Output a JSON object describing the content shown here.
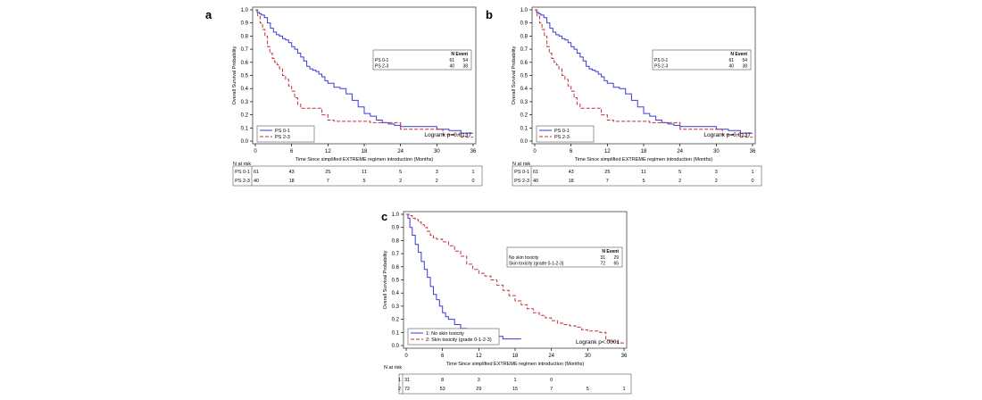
{
  "colors": {
    "group1": "#3a3ad6",
    "group2": "#c0303a",
    "axis": "#000000"
  },
  "chart_data": [
    {
      "type": "line",
      "panel_label": "a",
      "xlabel": "Time Since simplified EXTREME regimen introduction (Months)",
      "ylabel": "Overall Survival Probability",
      "xlim": [
        0,
        36
      ],
      "ylim": [
        0,
        1
      ],
      "xticks": [
        "0",
        "6",
        "12",
        "18",
        "24",
        "30",
        "36"
      ],
      "yticks": [
        "0.0",
        "0.1",
        "0.2",
        "0.3",
        "0.4",
        "0.5",
        "0.6",
        "0.7",
        "0.8",
        "0.9",
        "1.0"
      ],
      "series": [
        {
          "name": "PS 0-1",
          "style": "solid",
          "times": [
            0,
            0.3,
            0.7,
            1,
            1.5,
            2,
            2.5,
            3,
            3.5,
            4,
            4.5,
            5,
            5.5,
            6,
            6.5,
            7,
            7.5,
            8,
            8.5,
            9,
            9.5,
            10,
            10.5,
            11,
            11.5,
            12,
            13,
            14,
            15,
            16,
            17,
            18,
            19,
            20,
            21,
            22,
            23,
            24,
            26,
            28,
            30,
            32,
            33,
            34,
            36
          ],
          "surv": [
            1,
            0.98,
            0.97,
            0.96,
            0.94,
            0.9,
            0.86,
            0.83,
            0.81,
            0.8,
            0.78,
            0.77,
            0.75,
            0.72,
            0.7,
            0.67,
            0.64,
            0.61,
            0.57,
            0.55,
            0.54,
            0.53,
            0.51,
            0.49,
            0.46,
            0.44,
            0.41,
            0.4,
            0.36,
            0.31,
            0.26,
            0.21,
            0.19,
            0.16,
            0.14,
            0.13,
            0.12,
            0.11,
            0.11,
            0.11,
            0.09,
            0.08,
            0.08,
            0.06,
            0.06
          ]
        },
        {
          "name": "PS 2-3",
          "style": "dashed",
          "times": [
            0,
            0.4,
            0.8,
            1.2,
            1.6,
            2,
            2.4,
            2.8,
            3.2,
            3.6,
            4,
            4.5,
            5,
            5.5,
            6,
            6.5,
            7,
            7.5,
            8,
            10,
            11,
            12,
            13,
            18,
            19,
            22,
            24,
            30,
            31,
            33,
            34,
            36
          ],
          "surv": [
            1,
            0.95,
            0.9,
            0.85,
            0.8,
            0.72,
            0.67,
            0.63,
            0.6,
            0.58,
            0.55,
            0.5,
            0.47,
            0.42,
            0.38,
            0.33,
            0.28,
            0.25,
            0.25,
            0.25,
            0.2,
            0.16,
            0.15,
            0.15,
            0.14,
            0.14,
            0.09,
            0.09,
            0.05,
            0.05,
            0.03,
            0.03
          ]
        }
      ],
      "legend": [
        "PS 0-1",
        "PS 2-3"
      ],
      "stats_table": {
        "header": [
          "N",
          "Event"
        ],
        "rows": [
          {
            "label": "PS 0-1",
            "n": "61",
            "event": "54"
          },
          {
            "label": "PS 2-3",
            "n": "40",
            "event": "38"
          }
        ]
      },
      "annotation": "Logrank p=0.0137",
      "risk_table": {
        "title": "N at risk",
        "rows": [
          {
            "label": "PS 0-1",
            "values": [
              "61",
              "43",
              "25",
              "11",
              "5",
              "3",
              "1"
            ]
          },
          {
            "label": "PS 2-3",
            "values": [
              "40",
              "18",
              "7",
              "5",
              "2",
              "2",
              "0"
            ]
          }
        ]
      }
    },
    {
      "type": "line",
      "panel_label": "b",
      "xlabel": "Time Since simplified EXTREME regimen introduction (Months)",
      "ylabel": "Overall Survival Probability",
      "xlim": [
        0,
        36
      ],
      "ylim": [
        0,
        1
      ],
      "xticks": [
        "0",
        "6",
        "12",
        "18",
        "24",
        "30",
        "36"
      ],
      "yticks": [
        "0.0",
        "0.1",
        "0.2",
        "0.3",
        "0.4",
        "0.5",
        "0.6",
        "0.7",
        "0.8",
        "0.9",
        "1.0"
      ],
      "series": [
        {
          "name": "PS 0-1",
          "style": "solid",
          "times": [
            0,
            0.3,
            0.7,
            1,
            1.5,
            2,
            2.5,
            3,
            3.5,
            4,
            4.5,
            5,
            5.5,
            6,
            6.5,
            7,
            7.5,
            8,
            8.5,
            9,
            9.5,
            10,
            10.5,
            11,
            11.5,
            12,
            13,
            14,
            15,
            16,
            17,
            18,
            19,
            20,
            21,
            22,
            23,
            24,
            26,
            28,
            30,
            32,
            33,
            34,
            36
          ],
          "surv": [
            1,
            0.98,
            0.97,
            0.96,
            0.94,
            0.9,
            0.86,
            0.83,
            0.81,
            0.8,
            0.78,
            0.77,
            0.75,
            0.72,
            0.7,
            0.67,
            0.64,
            0.61,
            0.57,
            0.55,
            0.54,
            0.53,
            0.51,
            0.49,
            0.46,
            0.44,
            0.41,
            0.4,
            0.36,
            0.31,
            0.26,
            0.21,
            0.19,
            0.16,
            0.14,
            0.13,
            0.12,
            0.11,
            0.11,
            0.11,
            0.09,
            0.08,
            0.08,
            0.06,
            0.06
          ]
        },
        {
          "name": "PS 2-3",
          "style": "dashed",
          "times": [
            0,
            0.4,
            0.8,
            1.2,
            1.6,
            2,
            2.4,
            2.8,
            3.2,
            3.6,
            4,
            4.5,
            5,
            5.5,
            6,
            6.5,
            7,
            7.5,
            8,
            10,
            11,
            12,
            13,
            18,
            19,
            22,
            24,
            30,
            31,
            33,
            34,
            36
          ],
          "surv": [
            1,
            0.95,
            0.9,
            0.85,
            0.8,
            0.72,
            0.67,
            0.63,
            0.6,
            0.58,
            0.55,
            0.5,
            0.47,
            0.42,
            0.38,
            0.33,
            0.28,
            0.25,
            0.25,
            0.25,
            0.2,
            0.16,
            0.15,
            0.15,
            0.14,
            0.14,
            0.09,
            0.09,
            0.05,
            0.05,
            0.03,
            0.03
          ]
        }
      ],
      "legend": [
        "PS 0-1",
        "PS 2-3"
      ],
      "stats_table": {
        "header": [
          "N",
          "Event"
        ],
        "rows": [
          {
            "label": "PS 0-1",
            "n": "61",
            "event": "54"
          },
          {
            "label": "PS 2-3",
            "n": "40",
            "event": "38"
          }
        ]
      },
      "annotation": "Logrank p=0.0137",
      "risk_table": {
        "title": "N at risk",
        "rows": [
          {
            "label": "PS 0-1",
            "values": [
              "61",
              "43",
              "25",
              "11",
              "5",
              "3",
              "1"
            ]
          },
          {
            "label": "PS 2-3",
            "values": [
              "40",
              "18",
              "7",
              "5",
              "2",
              "2",
              "0"
            ]
          }
        ]
      }
    },
    {
      "type": "line",
      "panel_label": "c",
      "xlabel": "Time Since simplified EXTREME regimen introduction (Months)",
      "ylabel": "Overall Survival Probability",
      "xlim": [
        0,
        36
      ],
      "ylim": [
        0,
        1
      ],
      "xticks": [
        "0",
        "6",
        "12",
        "18",
        "24",
        "30",
        "36"
      ],
      "yticks": [
        "0.0",
        "0.1",
        "0.2",
        "0.3",
        "0.4",
        "0.5",
        "0.6",
        "0.7",
        "0.8",
        "0.9",
        "1.0"
      ],
      "series": [
        {
          "name": "1: No skin toxicity",
          "style": "solid",
          "times": [
            0,
            0.3,
            0.6,
            1,
            1.5,
            2,
            2.5,
            3,
            3.5,
            4,
            4.5,
            5,
            5.5,
            6,
            6.5,
            7,
            8,
            9,
            10,
            11,
            12,
            13,
            15,
            16,
            19
          ],
          "surv": [
            1,
            0.97,
            0.9,
            0.84,
            0.77,
            0.71,
            0.64,
            0.58,
            0.52,
            0.45,
            0.39,
            0.35,
            0.3,
            0.25,
            0.22,
            0.2,
            0.16,
            0.13,
            0.1,
            0.1,
            0.1,
            0.07,
            0.07,
            0.05,
            0.05
          ]
        },
        {
          "name": "2: Skin toxicity (grade 0-1-2-3)",
          "style": "dashed",
          "times": [
            0,
            0.5,
            1,
            1.5,
            2,
            2.5,
            3,
            3.5,
            4,
            4.5,
            5,
            6,
            7,
            8,
            9,
            10,
            11,
            12,
            13,
            14,
            15,
            16,
            17,
            18,
            19,
            20,
            21,
            22,
            23,
            24,
            25,
            26,
            27,
            28,
            29,
            30,
            31,
            32,
            33,
            34,
            35,
            36
          ],
          "surv": [
            1,
            0.99,
            0.97,
            0.96,
            0.94,
            0.92,
            0.9,
            0.87,
            0.84,
            0.82,
            0.81,
            0.79,
            0.76,
            0.72,
            0.68,
            0.62,
            0.58,
            0.55,
            0.53,
            0.5,
            0.46,
            0.42,
            0.38,
            0.34,
            0.31,
            0.28,
            0.25,
            0.23,
            0.21,
            0.19,
            0.17,
            0.16,
            0.15,
            0.14,
            0.12,
            0.11,
            0.11,
            0.1,
            0.04,
            0.03,
            0.02,
            0.02
          ]
        }
      ],
      "legend": [
        "1: No skin toxicity",
        "2: Skin toxicity (grade 0-1-2-3)"
      ],
      "stats_table": {
        "header": [
          "N",
          "Event"
        ],
        "rows": [
          {
            "label": "No skin toxicity",
            "n": "31",
            "event": "29"
          },
          {
            "label": "Skin toxicity (grade 0-1-2-3)",
            "n": "72",
            "event": "65"
          }
        ]
      },
      "annotation": "Logrank p<.0001",
      "risk_table": {
        "title": "N at risk",
        "rows": [
          {
            "label": "1",
            "values": [
              "31",
              "8",
              "3",
              "1",
              "0",
              "",
              ""
            ]
          },
          {
            "label": "2",
            "values": [
              "72",
              "53",
              "29",
              "15",
              "7",
              "5",
              "1"
            ]
          }
        ]
      }
    }
  ]
}
